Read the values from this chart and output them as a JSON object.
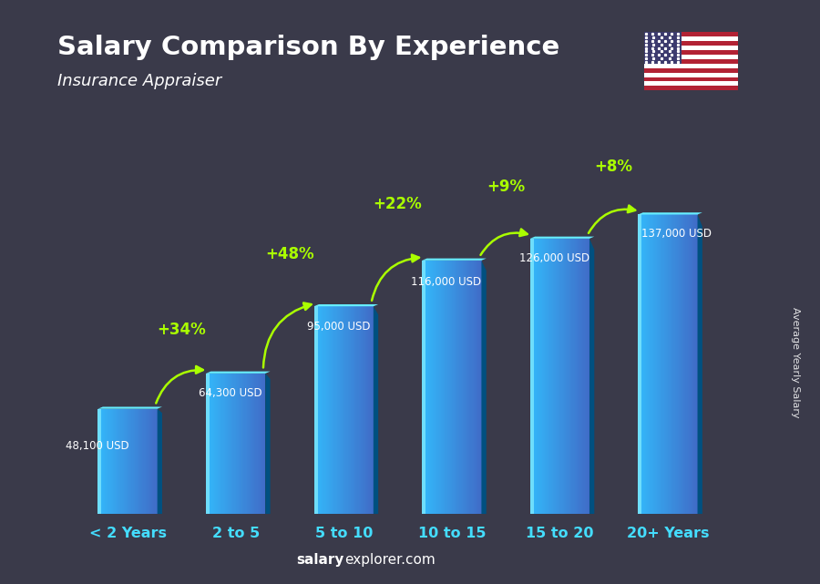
{
  "title": "Salary Comparison By Experience",
  "subtitle": "Insurance Appraiser",
  "categories": [
    "< 2 Years",
    "2 to 5",
    "5 to 10",
    "10 to 15",
    "15 to 20",
    "20+ Years"
  ],
  "values": [
    48100,
    64300,
    95000,
    116000,
    126000,
    137000
  ],
  "value_labels": [
    "48,100 USD",
    "64,300 USD",
    "95,000 USD",
    "116,000 USD",
    "126,000 USD",
    "137,000 USD"
  ],
  "pct_changes": [
    "+34%",
    "+48%",
    "+22%",
    "+9%",
    "+8%"
  ],
  "bar_face_left": "#55ddff",
  "bar_face_mid": "#22aaee",
  "bar_face_right": "#0077bb",
  "bar_side_color": "#005588",
  "bar_top_color": "#88eeff",
  "bg_color": "#3a3a4a",
  "title_color": "#ffffff",
  "subtitle_color": "#ffffff",
  "label_color": "#ffffff",
  "pct_color": "#aaff00",
  "arrow_color": "#aaff00",
  "xlabel_color": "#44ddff",
  "watermark_bold": "salary",
  "watermark_rest": "explorer.com",
  "ylabel_text": "Average Yearly Salary",
  "ylim": [
    0,
    155000
  ],
  "figsize": [
    9.0,
    6.41
  ],
  "dpi": 100
}
